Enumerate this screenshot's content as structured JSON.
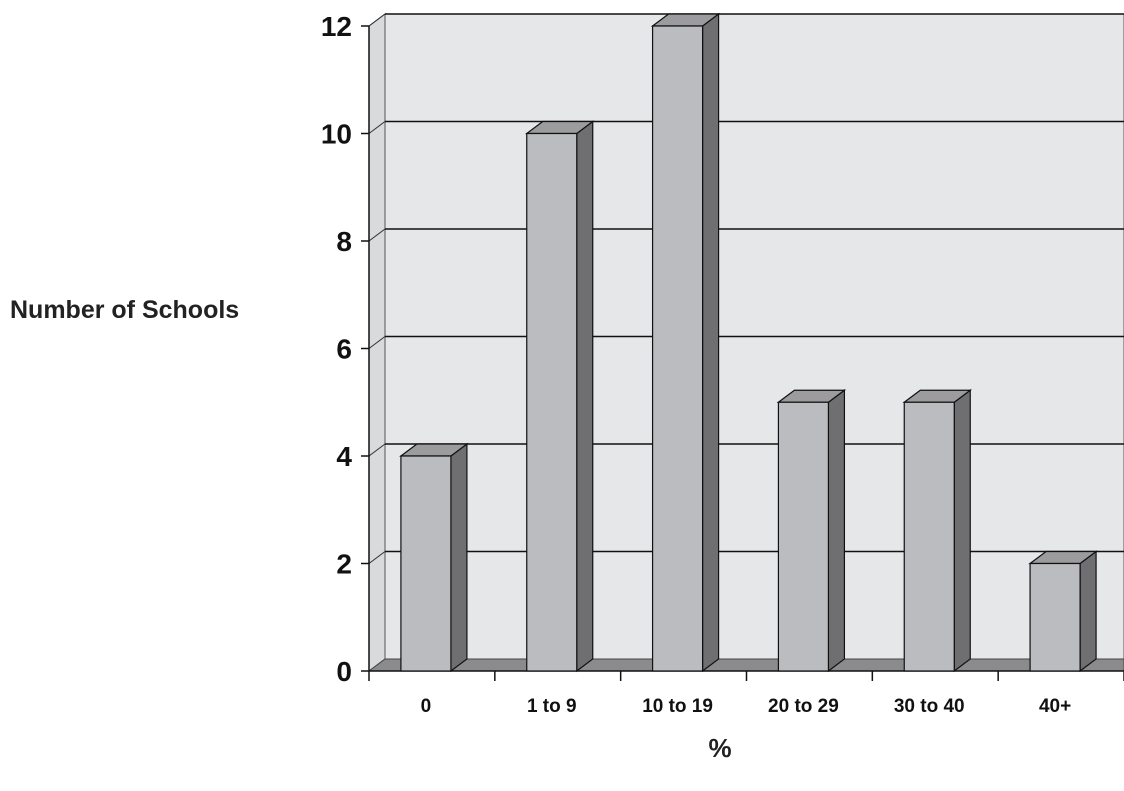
{
  "chart_data": {
    "type": "bar",
    "categories": [
      "0",
      "1 to 9",
      "10 to 19",
      "20 to 29",
      "30 to 40",
      "40+"
    ],
    "values": [
      4,
      10,
      12,
      5,
      5,
      2
    ],
    "title": "",
    "xlabel": "%",
    "ylabel": "Number of Schools",
    "ylim": [
      0,
      12
    ],
    "yticks": [
      0,
      2,
      4,
      6,
      8,
      10,
      12
    ],
    "grid": true,
    "style": "3d-bar",
    "colors": {
      "bar_front": "#bbbcc0",
      "bar_side": "#6f6f71",
      "bar_top": "#9c9c9e",
      "plot_back": "#e6e7e9",
      "floor": "#8b8b8d",
      "wall_left": "#d9dadc"
    }
  }
}
